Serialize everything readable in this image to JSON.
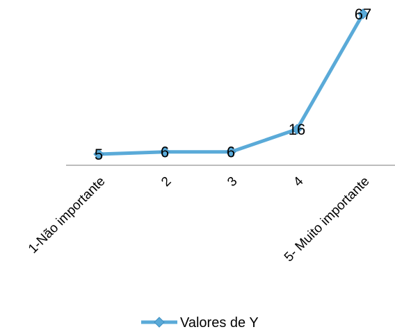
{
  "chart_data": {
    "type": "line",
    "categories": [
      "1-Não importante",
      "2",
      "3",
      "4",
      "5- Muito importante"
    ],
    "series": [
      {
        "name": "Valores de Y",
        "values": [
          5,
          6,
          6,
          16,
          67
        ],
        "color": "#5AAAD8",
        "marker": "diamond"
      }
    ],
    "data_labels": [
      "5",
      "6",
      "6",
      "16",
      "67"
    ],
    "axis_color": "#A6A6A6",
    "y_axis_visible": false,
    "grid": false,
    "legend_position": "bottom"
  }
}
